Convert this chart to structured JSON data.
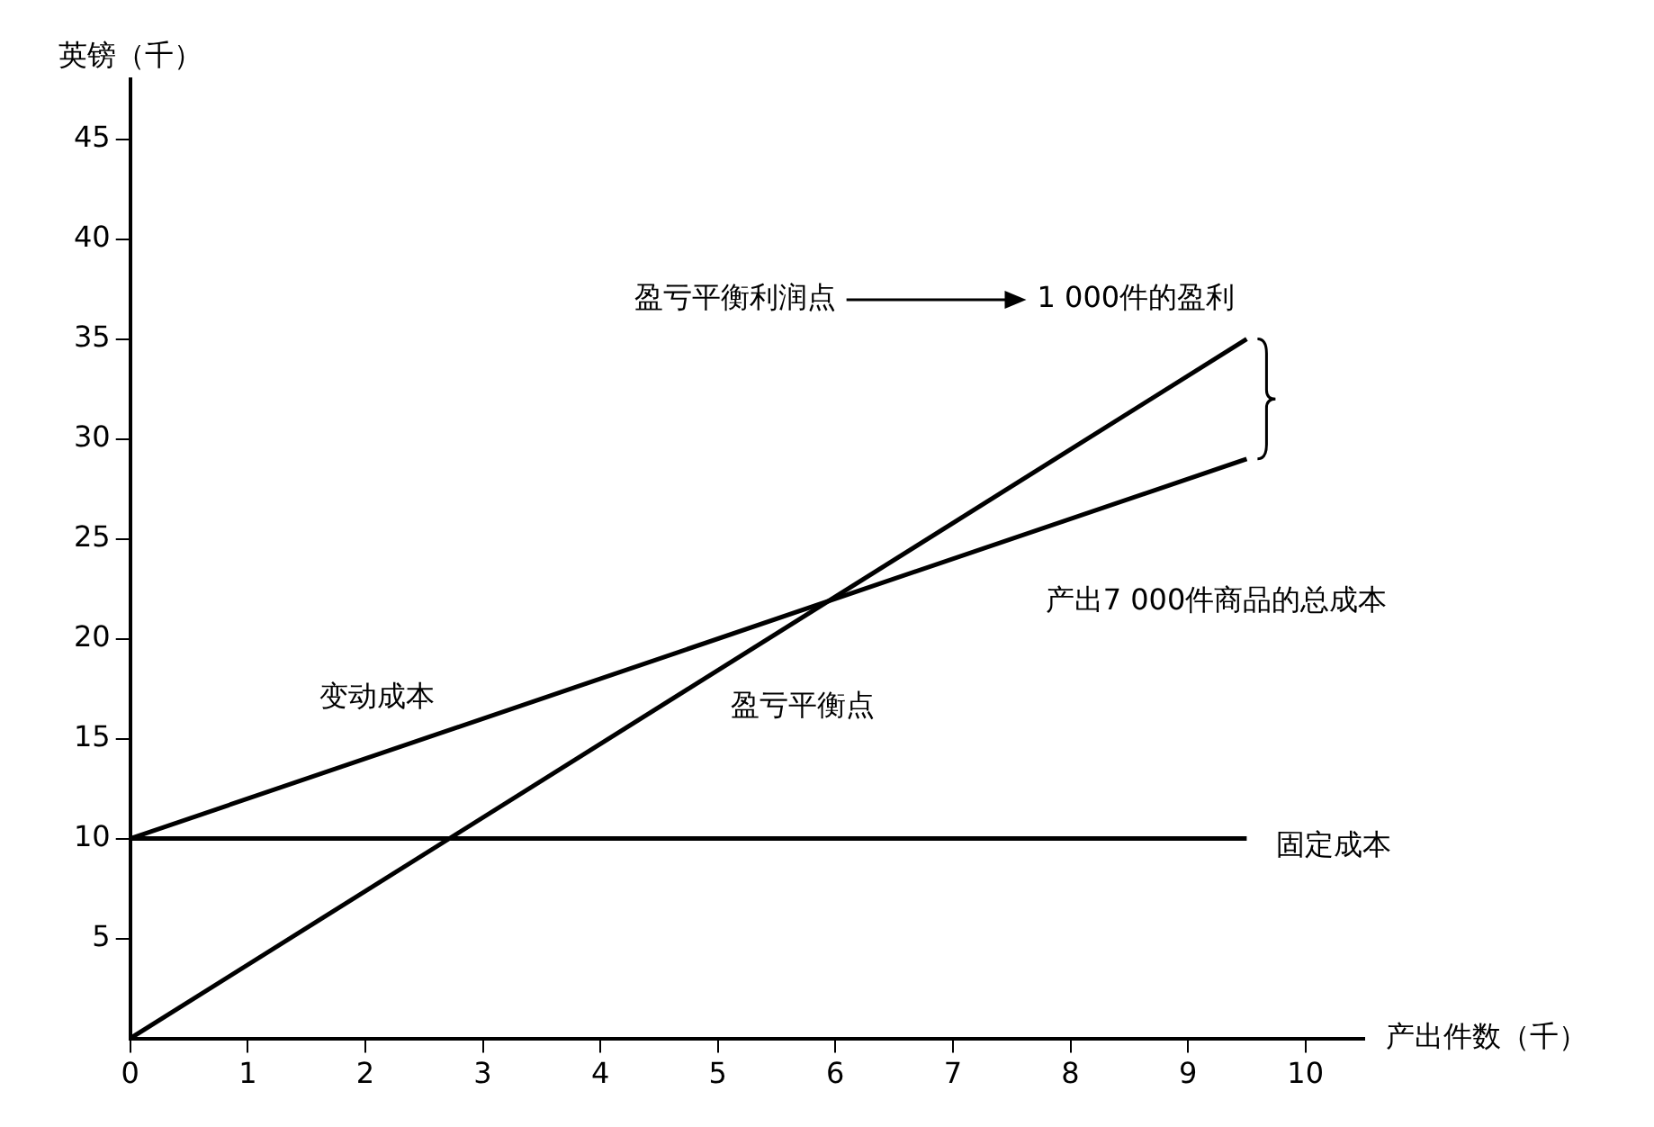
{
  "chart_data": {
    "type": "line",
    "xlabel": "产出件数（千）",
    "ylabel": "英镑（千）",
    "x": [
      0,
      9.5
    ],
    "series": [
      {
        "color": "#000000",
        "values": [
          0,
          35
        ]
      },
      {
        "color": "#000000",
        "values": [
          10,
          29
        ]
      },
      {
        "color": "#000000",
        "values": [
          10,
          10
        ]
      }
    ],
    "xlim": [
      0,
      10.5
    ],
    "xticks": [
      0,
      1,
      2,
      3,
      4,
      5,
      6,
      7,
      8,
      9,
      10
    ],
    "ylim": [
      0,
      48
    ],
    "yticks": [
      5,
      10,
      15,
      20,
      25,
      30,
      35,
      40,
      45
    ],
    "grid": false,
    "legend": false,
    "marker": "none",
    "line_style": "solid",
    "annotations": [
      "变动成本",
      "盈亏平衡点",
      "固定成本",
      "产出7 000件商品的总成本",
      "盈亏平衡利润点",
      "1 000件的盈利"
    ]
  }
}
